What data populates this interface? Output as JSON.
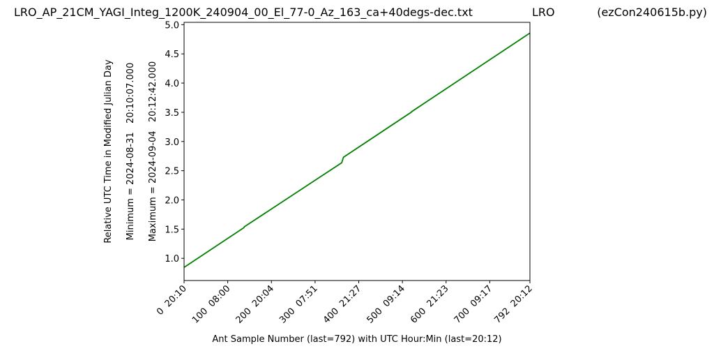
{
  "chart_data": {
    "type": "line",
    "title": "LRO_AP_21CM_YAGI_Integ_1200K_240904_00_El_77-0_Az_163_ca+40degs-dec.txt",
    "subtitle": "LRO",
    "source": "(ezCon240615b.py)",
    "x_label": "Ant Sample Number (last=792) with UTC Hour:Min (last=20:12)",
    "y_label": "Relative UTC Time in Modified Julian Day",
    "y_min_label": "Minimum = 2024-08-31   20:10:07.000",
    "y_max_label": "Maximum = 2024-09-04   20:12:42.000",
    "x": [
      0,
      137,
      138,
      361,
      362,
      365,
      520,
      521,
      792
    ],
    "values": [
      0.845,
      1.525,
      1.54,
      2.636,
      2.66,
      2.73,
      3.5,
      3.51,
      4.857
    ],
    "color": "#008000",
    "xlim": [
      0,
      792
    ],
    "ylim": [
      0.62,
      5.04
    ],
    "xticks": [
      {
        "value": 0,
        "label": "0  20:10"
      },
      {
        "value": 100,
        "label": "100  08:00"
      },
      {
        "value": 200,
        "label": "200  20:04"
      },
      {
        "value": 300,
        "label": "300  07:51"
      },
      {
        "value": 400,
        "label": "400  21:27"
      },
      {
        "value": 500,
        "label": "500  09:14"
      },
      {
        "value": 600,
        "label": "600  21:23"
      },
      {
        "value": 700,
        "label": "700  09:17"
      },
      {
        "value": 792,
        "label": "792  20:12"
      }
    ],
    "yticks": [
      {
        "value": 1,
        "label": "1.0"
      },
      {
        "value": 1.5,
        "label": "1.5"
      },
      {
        "value": 2,
        "label": "2.0"
      },
      {
        "value": 2.5,
        "label": "2.5"
      },
      {
        "value": 3,
        "label": "3.0"
      },
      {
        "value": 3.5,
        "label": "3.5"
      },
      {
        "value": 4,
        "label": "4.0"
      },
      {
        "value": 4.5,
        "label": "4.5"
      },
      {
        "value": 5,
        "label": "5.0"
      }
    ],
    "grid": false
  }
}
